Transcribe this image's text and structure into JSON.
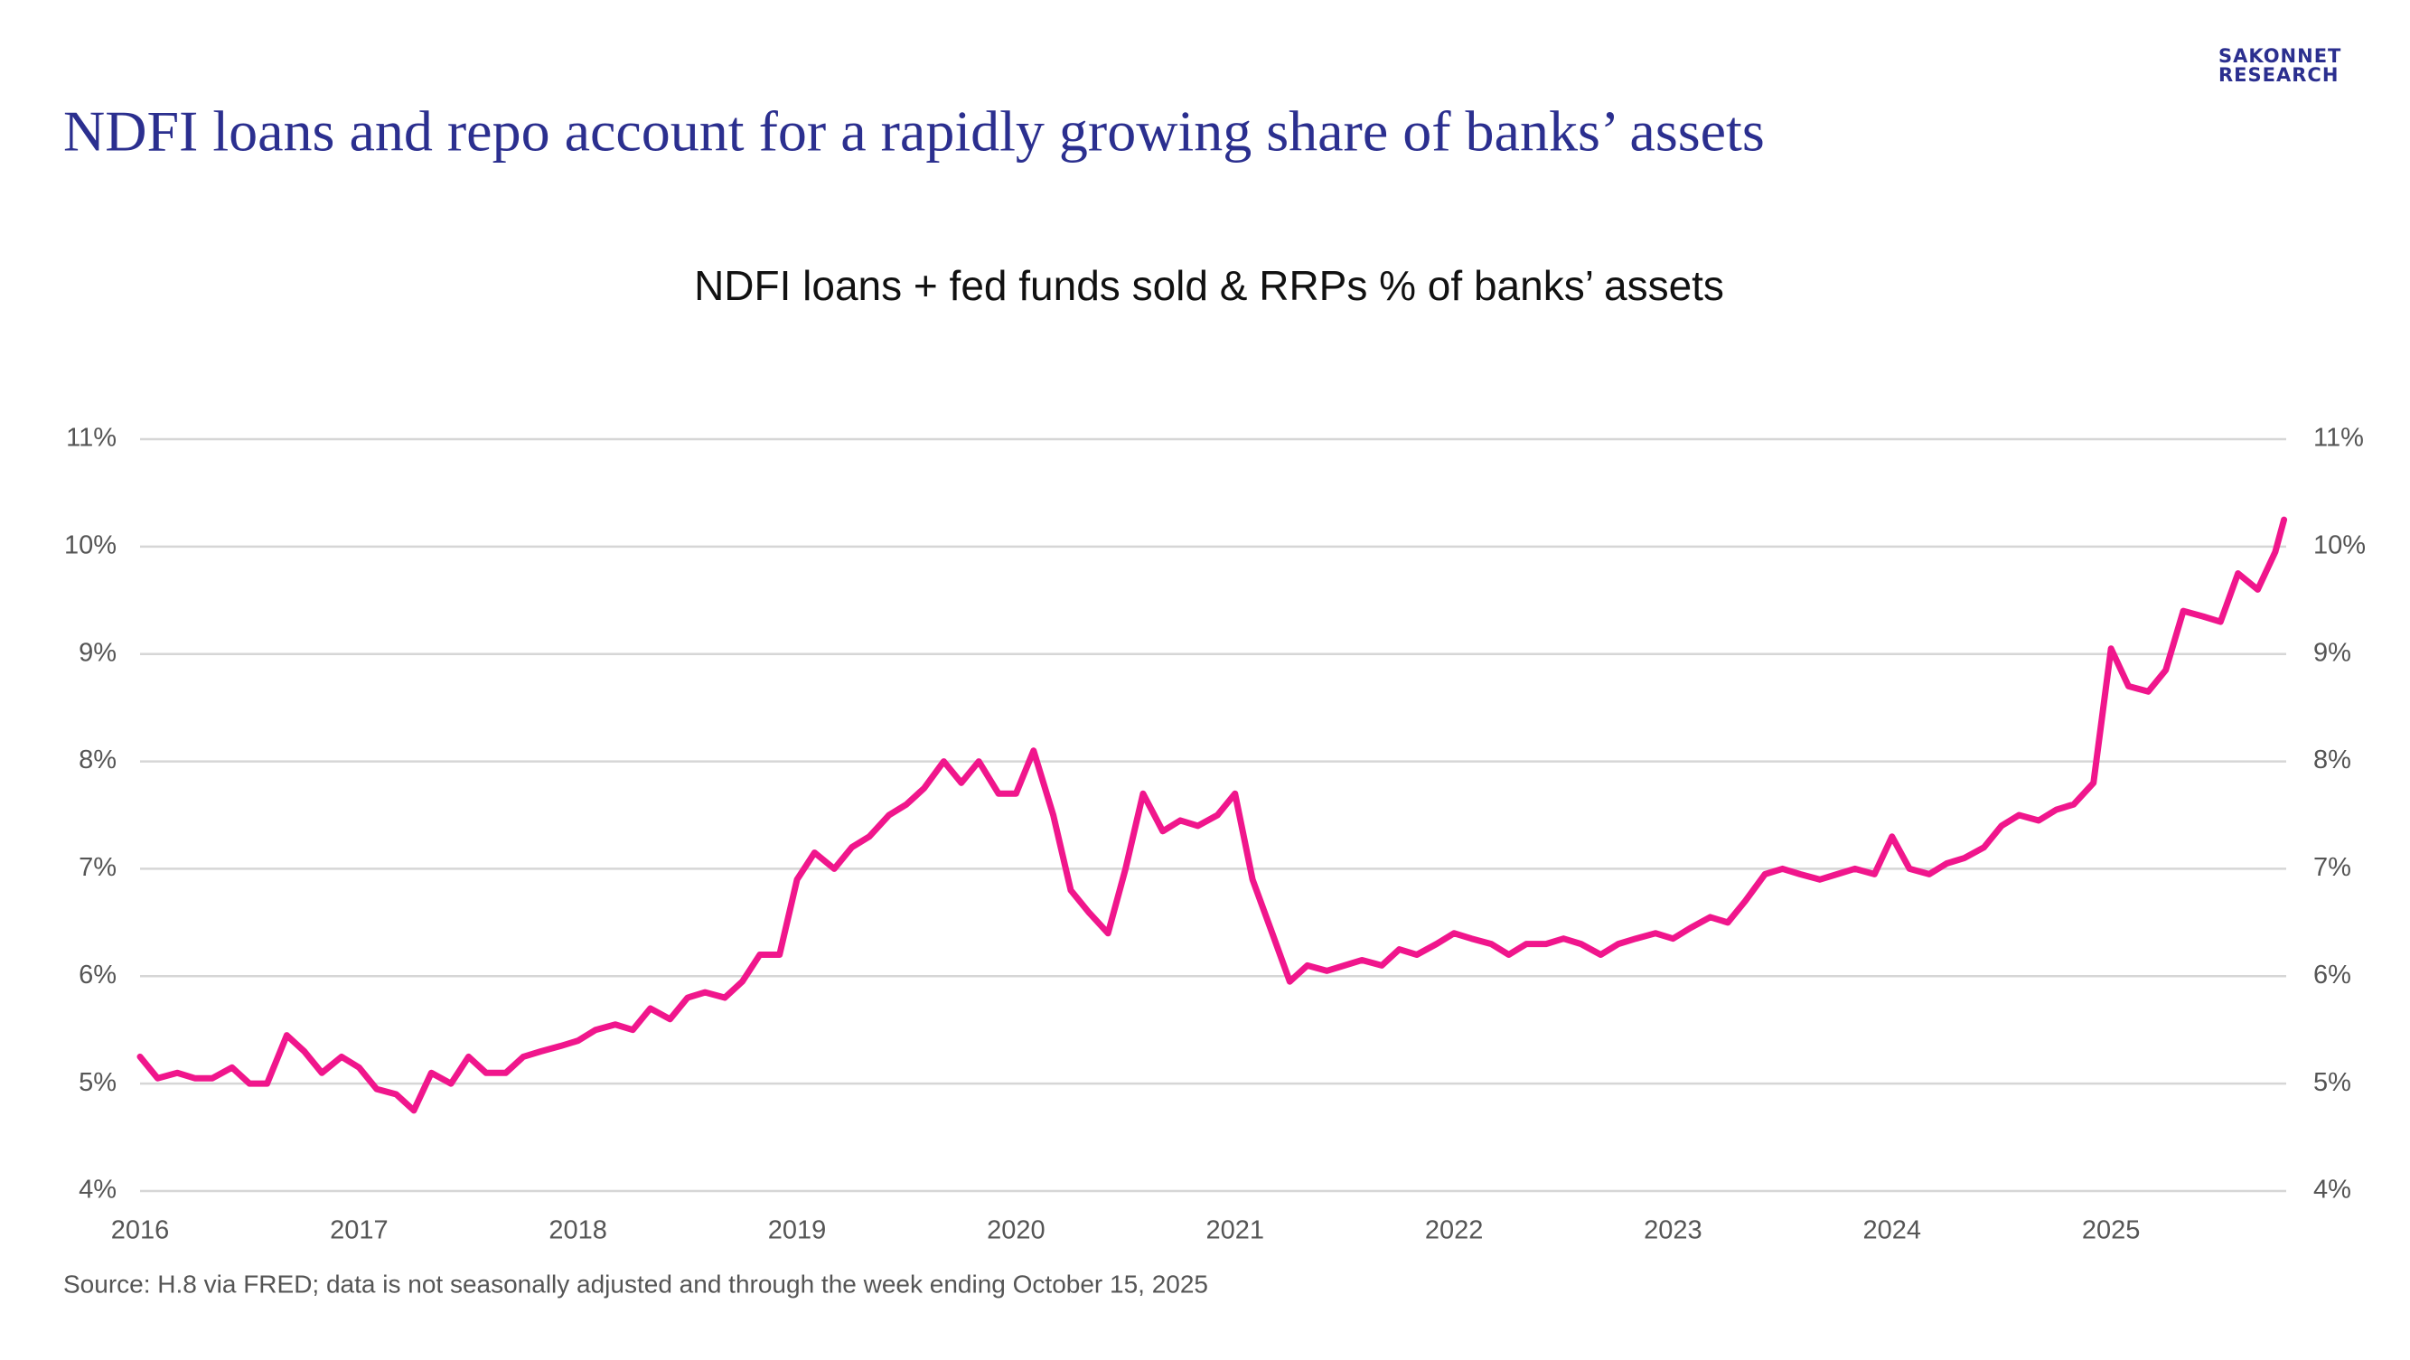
{
  "slide_title": "NDFI loans and repo account for a rapidly growing share of banks’ assets",
  "logo": [
    "SAKONNET",
    "RESEARCH"
  ],
  "source": "Source: H.8 via FRED; data is not seasonally adjusted and through the week ending October 15, 2025",
  "chart_data": {
    "type": "line",
    "title": "NDFI loans + fed funds sold & RRPs % of banks’ assets",
    "x": [
      2016.0,
      2016.08,
      2016.17,
      2016.25,
      2016.33,
      2016.42,
      2016.5,
      2016.58,
      2016.67,
      2016.75,
      2016.83,
      2016.92,
      2017.0,
      2017.08,
      2017.17,
      2017.25,
      2017.33,
      2017.42,
      2017.5,
      2017.58,
      2017.67,
      2017.75,
      2017.83,
      2017.92,
      2018.0,
      2018.08,
      2018.17,
      2018.25,
      2018.33,
      2018.42,
      2018.5,
      2018.58,
      2018.67,
      2018.75,
      2018.83,
      2018.92,
      2019.0,
      2019.08,
      2019.17,
      2019.25,
      2019.33,
      2019.42,
      2019.5,
      2019.58,
      2019.67,
      2019.75,
      2019.83,
      2019.92,
      2020.0,
      2020.08,
      2020.17,
      2020.25,
      2020.33,
      2020.42,
      2020.5,
      2020.58,
      2020.67,
      2020.75,
      2020.83,
      2020.92,
      2021.0,
      2021.08,
      2021.17,
      2021.25,
      2021.33,
      2021.42,
      2021.5,
      2021.58,
      2021.67,
      2021.75,
      2021.83,
      2021.92,
      2022.0,
      2022.08,
      2022.17,
      2022.25,
      2022.33,
      2022.42,
      2022.5,
      2022.58,
      2022.67,
      2022.75,
      2022.83,
      2022.92,
      2023.0,
      2023.08,
      2023.17,
      2023.25,
      2023.33,
      2023.42,
      2023.5,
      2023.58,
      2023.67,
      2023.75,
      2023.83,
      2023.92,
      2024.0,
      2024.08,
      2024.17,
      2024.25,
      2024.33,
      2024.42,
      2024.5,
      2024.58,
      2024.67,
      2024.75,
      2024.83,
      2024.92,
      2025.0,
      2025.08,
      2025.17,
      2025.25,
      2025.33,
      2025.42,
      2025.5,
      2025.58,
      2025.67,
      2025.75,
      2025.79
    ],
    "series": [
      {
        "color": "#f0168c",
        "values": [
          5.25,
          5.05,
          5.1,
          5.05,
          5.05,
          5.15,
          5.0,
          5.0,
          5.45,
          5.3,
          5.1,
          5.25,
          5.15,
          4.95,
          4.9,
          4.75,
          5.1,
          5.0,
          5.25,
          5.1,
          5.1,
          5.25,
          5.3,
          5.35,
          5.4,
          5.5,
          5.55,
          5.5,
          5.7,
          5.6,
          5.8,
          5.85,
          5.8,
          5.95,
          6.2,
          6.2,
          6.9,
          7.15,
          7.0,
          7.2,
          7.3,
          7.5,
          7.6,
          7.75,
          8.0,
          7.8,
          8.0,
          7.7,
          7.7,
          8.1,
          7.5,
          6.8,
          6.6,
          6.4,
          7.0,
          7.7,
          7.35,
          7.45,
          7.4,
          7.5,
          7.7,
          6.9,
          6.4,
          5.95,
          6.1,
          6.05,
          6.1,
          6.15,
          6.1,
          6.25,
          6.2,
          6.3,
          6.4,
          6.35,
          6.3,
          6.2,
          6.3,
          6.3,
          6.35,
          6.3,
          6.2,
          6.3,
          6.35,
          6.4,
          6.35,
          6.45,
          6.55,
          6.5,
          6.7,
          6.95,
          7.0,
          6.95,
          6.9,
          6.95,
          7.0,
          6.95,
          7.3,
          7.0,
          6.95,
          7.05,
          7.1,
          7.2,
          7.4,
          7.5,
          7.45,
          7.55,
          7.6,
          7.8,
          9.05,
          8.7,
          8.65,
          8.85,
          9.4,
          9.35,
          9.3,
          9.75,
          9.6,
          9.95,
          10.25
        ]
      }
    ],
    "xlim": [
      2016,
      2025.8
    ],
    "xticks": [
      2016,
      2017,
      2018,
      2019,
      2020,
      2021,
      2022,
      2023,
      2024,
      2025
    ],
    "ylim": [
      4,
      11
    ],
    "yticks": [
      {
        "value": 4,
        "label": "4%"
      },
      {
        "value": 5,
        "label": "5%"
      },
      {
        "value": 6,
        "label": "6%"
      },
      {
        "value": 7,
        "label": "7%"
      },
      {
        "value": 8,
        "label": "8%"
      },
      {
        "value": 9,
        "label": "9%"
      },
      {
        "value": 10,
        "label": "10%"
      },
      {
        "value": 11,
        "label": "11%"
      }
    ],
    "y2lim": [
      4,
      11
    ],
    "y2ticks": [
      {
        "value": 4,
        "label": "4%"
      },
      {
        "value": 5,
        "label": "5%"
      },
      {
        "value": 6,
        "label": "6%"
      },
      {
        "value": 7,
        "label": "7%"
      },
      {
        "value": 8,
        "label": "8%"
      },
      {
        "value": 9,
        "label": "9%"
      },
      {
        "value": 10,
        "label": "10%"
      },
      {
        "value": 11,
        "label": "11%"
      }
    ],
    "grid": true
  }
}
